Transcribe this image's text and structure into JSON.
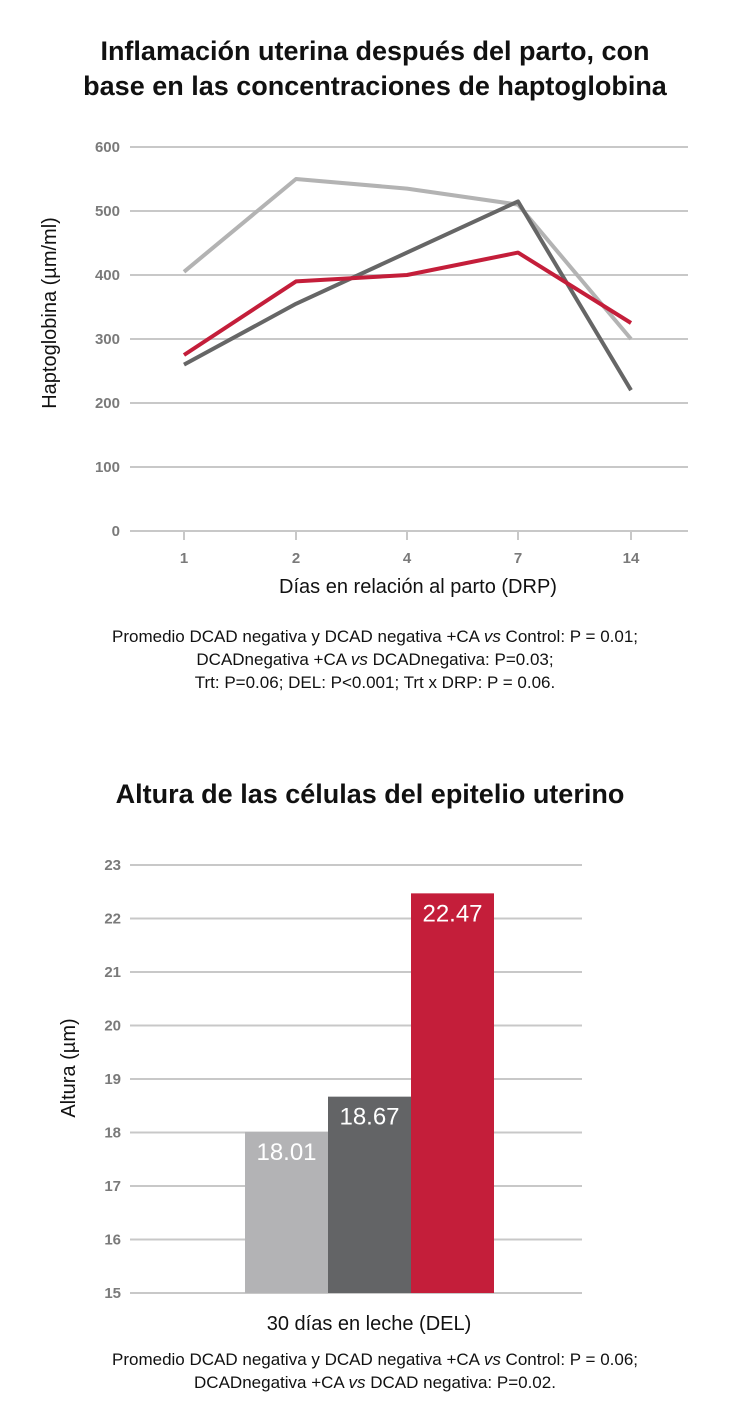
{
  "chart_data": [
    {
      "type": "line",
      "title": "Inflamación uterina después del parto, con base en las concentraciones de haptoglobina",
      "title_lines": [
        "Inflamación uterina después del parto, con",
        "base en las concentraciones de haptoglobina"
      ],
      "xlabel": "Días en relación al parto (DRP)",
      "ylabel": "Haptoglobina (µm/ml)",
      "categories": [
        "1",
        "2",
        "4",
        "7",
        "14"
      ],
      "yticks": [
        "0",
        "100",
        "200",
        "300",
        "400",
        "500",
        "600"
      ],
      "ylim": [
        0,
        600
      ],
      "grid": true,
      "series": [
        {
          "color": "#b3b3b3",
          "values": [
            405,
            550,
            535,
            510,
            300
          ]
        },
        {
          "color": "#666666",
          "values": [
            260,
            355,
            435,
            515,
            220
          ]
        },
        {
          "color": "#c41e3a",
          "values": [
            275,
            390,
            400,
            435,
            325
          ]
        }
      ],
      "footnote": [
        "Promedio DCAD negativa y DCAD negativa +CA vs Control: P = 0.01;",
        "DCADnegativa +CA vs DCADnegativa: P=0.03;",
        "Trt: P=0.06; DEL: P<0.001; Trt x DRP: P = 0.06."
      ]
    },
    {
      "type": "bar",
      "title": "Altura de las células del epitelio uterino",
      "xlabel": "30 días en leche (DEL)",
      "ylabel": "Altura (µm)",
      "yticks": [
        "15",
        "16",
        "17",
        "18",
        "19",
        "20",
        "21",
        "22",
        "23"
      ],
      "ylim": [
        15,
        23
      ],
      "grid": true,
      "values": [
        18.01,
        18.67,
        22.47
      ],
      "value_labels": [
        "18.01",
        "18.67",
        "22.47"
      ],
      "colors": [
        "#b3b3b5",
        "#636466",
        "#c41e3a"
      ],
      "footnote": [
        "Promedio DCAD negativa y DCAD negativa +CA vs Control: P = 0.06;",
        "DCADnegativa +CA vs DCAD negativa: P=0.02."
      ]
    }
  ]
}
